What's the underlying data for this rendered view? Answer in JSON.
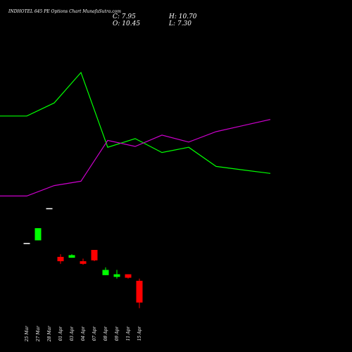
{
  "header": {
    "title": "INDHOTEL 645 PE Options  Chart MunafaSutra.com",
    "close_label": "C:",
    "close_value": "7.95",
    "open_label": "O:",
    "open_value": "10.45",
    "high_label": "H:",
    "high_value": "10.70",
    "low_label": "L:",
    "low_value": "7.30"
  },
  "chart_data": {
    "type": "candlestick",
    "title": "INDHOTEL 645 PE Options  Chart MunafaSutra.com",
    "categories": [
      "25 Mar",
      "27 Mar",
      "28 Mar",
      "01 Apr",
      "03 Apr",
      "04 Apr",
      "07 Apr",
      "08 Apr",
      "09 Apr",
      "11 Apr",
      "15 Apr"
    ],
    "candles": [
      {
        "open": 14.8,
        "high": 14.8,
        "low": 14.8,
        "close": 14.8,
        "color": "#ffffff"
      },
      {
        "open": 15.1,
        "high": 16.5,
        "low": 15.1,
        "close": 16.5,
        "color": "#00ff00"
      },
      {
        "open": 18.8,
        "high": 18.8,
        "low": 18.8,
        "close": 18.8,
        "color": "#ffffff"
      },
      {
        "open": 13.2,
        "high": 13.5,
        "low": 12.4,
        "close": 12.7,
        "color": "#ff0000"
      },
      {
        "open": 13.1,
        "high": 13.5,
        "low": 13.1,
        "close": 13.4,
        "color": "#00ff00"
      },
      {
        "open": 12.7,
        "high": 13.0,
        "low": 12.3,
        "close": 12.4,
        "color": "#ff0000"
      },
      {
        "open": 14.0,
        "high": 14.0,
        "low": 12.7,
        "close": 12.8,
        "color": "#ff0000"
      },
      {
        "open": 11.1,
        "high": 12.0,
        "low": 11.1,
        "close": 11.7,
        "color": "#00ff00"
      },
      {
        "open": 10.9,
        "high": 11.7,
        "low": 10.7,
        "close": 11.2,
        "color": "#00ff00"
      },
      {
        "open": 11.2,
        "high": 11.2,
        "low": 10.7,
        "close": 10.8,
        "color": "#ff0000"
      },
      {
        "open": 10.45,
        "high": 10.7,
        "low": 7.3,
        "close": 7.95,
        "color": "#ff0000"
      }
    ],
    "series": [
      {
        "values": [
          29.4,
          29.4,
          30.9,
          34.4,
          25.8,
          26.8,
          25.2,
          25.8,
          23.6,
          23.2,
          22.8
        ],
        "color": "#00ff00"
      },
      {
        "values": [
          20.2,
          20.2,
          21.4,
          21.9,
          26.6,
          25.9,
          27.2,
          26.4,
          27.6,
          28.3,
          29.0
        ],
        "color": "#cc00cc"
      }
    ],
    "ylim": [
      5.5,
      39.5
    ],
    "grid": false,
    "legend": "none"
  }
}
